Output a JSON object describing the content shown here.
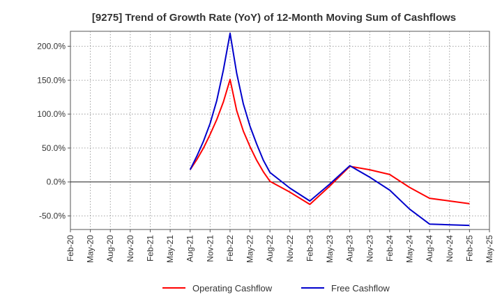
{
  "chart_data": {
    "type": "line",
    "title": "[9275]  Trend of Growth Rate (YoY) of 12-Month Moving Sum of Cashflows",
    "xlabel": "",
    "ylabel": "",
    "x_categories": [
      "Feb-20",
      "May-20",
      "Aug-20",
      "Nov-20",
      "Feb-21",
      "May-21",
      "Aug-21",
      "Nov-21",
      "Feb-22",
      "May-22",
      "Aug-22",
      "Nov-22",
      "Feb-23",
      "May-23",
      "Aug-23",
      "Nov-23",
      "Feb-24",
      "May-24",
      "Aug-24",
      "Nov-24",
      "Feb-25",
      "May-25"
    ],
    "y_ticks": [
      -50,
      0,
      50,
      100,
      150,
      200
    ],
    "y_tick_labels": [
      "-50.0%",
      "0.0%",
      "50.0%",
      "100.0%",
      "150.0%",
      "200.0%"
    ],
    "ylim": [
      -70,
      222
    ],
    "grid": true,
    "legend_position": "bottom",
    "series": [
      {
        "name": "Operating Cashflow",
        "color": "#ff0000",
        "points": [
          [
            "2021-08",
            18
          ],
          [
            "2021-09",
            33
          ],
          [
            "2021-10",
            50
          ],
          [
            "2021-11",
            70
          ],
          [
            "2021-12",
            92
          ],
          [
            "2022-01",
            118
          ],
          [
            "2022-02",
            151
          ],
          [
            "2022-03",
            105
          ],
          [
            "2022-04",
            75
          ],
          [
            "2022-05",
            52
          ],
          [
            "2022-06",
            32
          ],
          [
            "2022-07",
            15
          ],
          [
            "2022-08",
            1
          ],
          [
            "2022-11",
            -15
          ],
          [
            "2023-02",
            -33
          ],
          [
            "2023-05",
            -6
          ],
          [
            "2023-08",
            23
          ],
          [
            "2023-11",
            18
          ],
          [
            "2024-02",
            11
          ],
          [
            "2024-05",
            -8
          ],
          [
            "2024-08",
            -24
          ],
          [
            "2024-11",
            -28
          ],
          [
            "2025-02",
            -32
          ]
        ]
      },
      {
        "name": "Free Cashflow",
        "color": "#0000cc",
        "points": [
          [
            "2021-08",
            18
          ],
          [
            "2021-09",
            38
          ],
          [
            "2021-10",
            60
          ],
          [
            "2021-11",
            86
          ],
          [
            "2021-12",
            120
          ],
          [
            "2022-01",
            165
          ],
          [
            "2022-02",
            219
          ],
          [
            "2022-03",
            160
          ],
          [
            "2022-04",
            115
          ],
          [
            "2022-05",
            82
          ],
          [
            "2022-06",
            56
          ],
          [
            "2022-07",
            32
          ],
          [
            "2022-08",
            14
          ],
          [
            "2022-11",
            -9
          ],
          [
            "2023-02",
            -28
          ],
          [
            "2023-05",
            -3
          ],
          [
            "2023-08",
            24
          ],
          [
            "2023-11",
            7
          ],
          [
            "2024-02",
            -12
          ],
          [
            "2024-05",
            -40
          ],
          [
            "2024-08",
            -62
          ],
          [
            "2024-11",
            -63
          ],
          [
            "2025-02",
            -64
          ]
        ]
      }
    ]
  }
}
